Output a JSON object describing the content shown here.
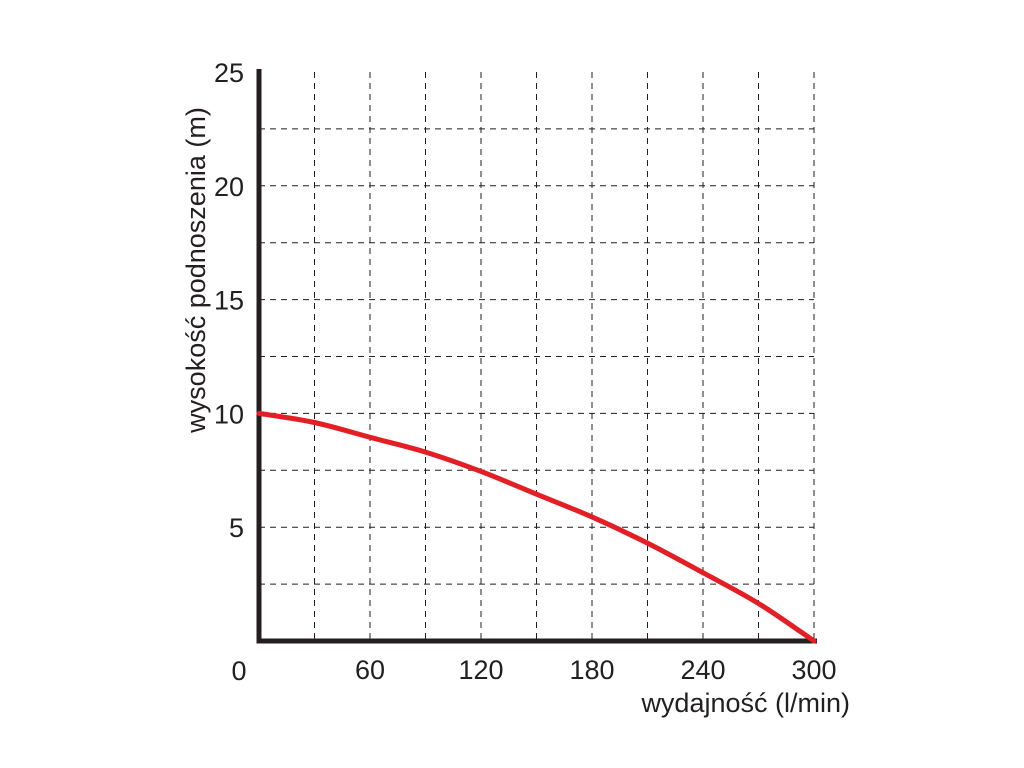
{
  "chart_data": {
    "type": "line",
    "title": "",
    "xlabel": "wydajność (l/min)",
    "ylabel": "wysokość podnoszenia (m)",
    "xlim": [
      0,
      300
    ],
    "ylim": [
      0,
      25
    ],
    "xticks": [
      60,
      120,
      180,
      240,
      300
    ],
    "yticks": [
      5,
      10,
      15,
      20,
      25
    ],
    "origin_label": "0",
    "x_grid_step": 30,
    "y_grid_step": 2.5,
    "grid": "dashed",
    "legend": "none",
    "series": [
      {
        "color": "#e31e24",
        "x": [
          0,
          30,
          60,
          90,
          120,
          150,
          180,
          210,
          240,
          270,
          300
        ],
        "y": [
          10.0,
          9.6,
          8.95,
          8.3,
          7.45,
          6.45,
          5.45,
          4.3,
          3.0,
          1.65,
          0.0
        ]
      }
    ]
  }
}
